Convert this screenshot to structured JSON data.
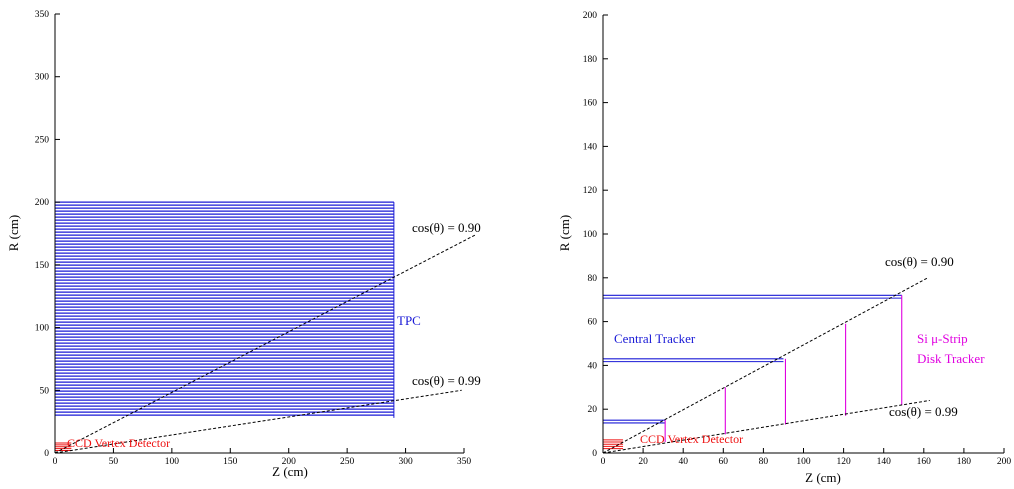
{
  "colors": {
    "tpc": "#1a1ad6",
    "tracker": "#1a1ad6",
    "disk": "#e000e0",
    "ccd": "#ee1111",
    "cone": "#000000"
  },
  "left_panel": {
    "xlabel": "Z (cm)",
    "ylabel": "R (cm)",
    "xlim": [
      0,
      350
    ],
    "ylim": [
      0,
      350
    ],
    "xticks": [
      "0",
      "50",
      "100",
      "150",
      "200",
      "250",
      "300",
      "350"
    ],
    "yticks": [
      "0",
      "50",
      "100",
      "150",
      "200",
      "250",
      "300",
      "350"
    ],
    "tpc_label": "TPC",
    "ccd_label": "CCD Vertex Detector",
    "cos90_label": "cos(θ) = 0.90",
    "cos99_label": "cos(θ) = 0.99"
  },
  "right_panel": {
    "xlabel": "Z (cm)",
    "ylabel": "R (cm)",
    "xlim": [
      0,
      200
    ],
    "ylim": [
      0,
      200
    ],
    "xticks": [
      "0",
      "20",
      "40",
      "60",
      "80",
      "100",
      "120",
      "140",
      "160",
      "180",
      "200"
    ],
    "yticks": [
      "0",
      "20",
      "40",
      "60",
      "80",
      "100",
      "120",
      "140",
      "160",
      "180",
      "200"
    ],
    "central_label": "Central Tracker",
    "disk_label_line1": "Si μ-Strip",
    "disk_label_line2": "Disk Tracker",
    "ccd_label": "CCD Vertex Detector",
    "cos90_label": "cos(θ) = 0.90",
    "cos99_label": "cos(θ) = 0.99"
  },
  "chart_data": [
    {
      "type": "diagram",
      "xlabel": "Z (cm)",
      "ylabel": "R (cm)",
      "xlim": [
        0,
        350
      ],
      "ylim": [
        0,
        350
      ],
      "tpc": {
        "z_max": 290,
        "r_min": 28,
        "r_max": 200
      },
      "ccd": {
        "z_max": 14,
        "r_min": 2,
        "r_max": 8
      },
      "cones": [
        {
          "label": "cos(θ) = 0.90",
          "z_end": 360,
          "r_end": 174
        },
        {
          "label": "cos(θ) = 0.99",
          "z_end": 348,
          "r_end": 50
        }
      ]
    },
    {
      "type": "diagram",
      "xlabel": "Z (cm)",
      "ylabel": "R (cm)",
      "xlim": [
        0,
        200
      ],
      "ylim": [
        0,
        200
      ],
      "central_tracker": [
        {
          "z_max": 31,
          "r": 15
        },
        {
          "z_max": 90,
          "r": 43
        },
        {
          "z_max": 149,
          "r": 72
        }
      ],
      "disks": [
        {
          "z": 31,
          "r_min": 5,
          "r_max": 15
        },
        {
          "z": 61,
          "r_min": 8.5,
          "r_max": 30
        },
        {
          "z": 91,
          "r_min": 13,
          "r_max": 43
        },
        {
          "z": 121,
          "r_min": 17,
          "r_max": 59
        },
        {
          "z": 149,
          "r_min": 22,
          "r_max": 72
        }
      ],
      "ccd": {
        "z_max": 10,
        "r_min": 2,
        "r_max": 6
      },
      "cones": [
        {
          "label": "cos(θ) = 0.90",
          "z_end": 162,
          "r_end": 80
        },
        {
          "label": "cos(θ) = 0.99",
          "z_end": 163,
          "r_end": 24
        }
      ]
    }
  ]
}
